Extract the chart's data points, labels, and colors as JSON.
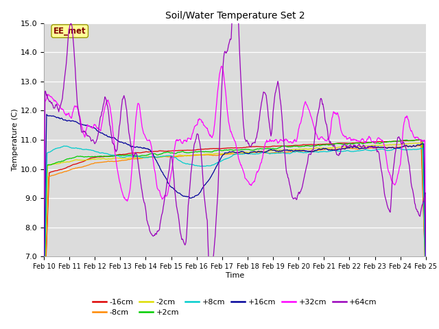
{
  "title": "Soil/Water Temperature Set 2",
  "xlabel": "Time",
  "ylabel": "Temperature (C)",
  "ylim": [
    7.0,
    15.0
  ],
  "yticks": [
    7.0,
    8.0,
    9.0,
    10.0,
    11.0,
    12.0,
    13.0,
    14.0,
    15.0
  ],
  "xlim": [
    0,
    360
  ],
  "xtick_labels": [
    "Feb 10",
    "Feb 11",
    "Feb 12",
    "Feb 13",
    "Feb 14",
    "Feb 15",
    "Feb 16",
    "Feb 17",
    "Feb 18",
    "Feb 19",
    "Feb 20",
    "Feb 21",
    "Feb 22",
    "Feb 23",
    "Feb 24",
    "Feb 25"
  ],
  "xtick_positions": [
    0,
    24,
    48,
    72,
    96,
    120,
    144,
    168,
    192,
    216,
    240,
    264,
    288,
    312,
    336,
    360
  ],
  "annotation": "EE_met",
  "annotation_color": "#800000",
  "annotation_bg": "#ffff99",
  "series_colors": {
    "-16cm": "#dd0000",
    "-8cm": "#ff8800",
    "-2cm": "#dddd00",
    "+2cm": "#00cc00",
    "+8cm": "#00cccc",
    "+16cm": "#000099",
    "+32cm": "#ff00ff",
    "+64cm": "#9900bb"
  },
  "bg_color": "#dcdcdc",
  "legend_ncol_row1": 6,
  "legend_ncol_row2": 2
}
